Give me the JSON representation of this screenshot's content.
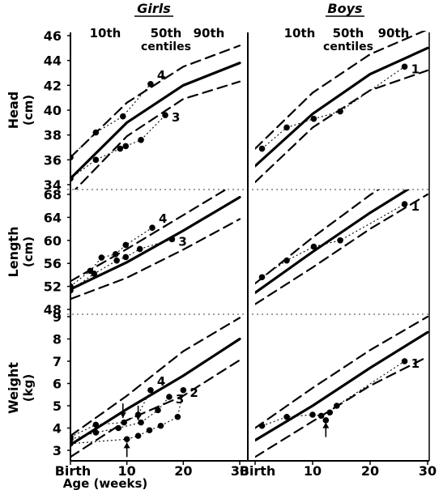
{
  "chart_data": {
    "type": "line",
    "x_unit": "weeks",
    "x_ticks": [
      {
        "value": 0,
        "label": "Birth"
      },
      {
        "value": 10,
        "label": "10"
      },
      {
        "value": 20,
        "label": "20"
      },
      {
        "value": 30,
        "label": "30"
      }
    ],
    "x_axis_label": "Age (weeks)",
    "xlim": [
      0,
      30
    ],
    "centile_header": {
      "tenth": "10th",
      "fiftieth": "50th",
      "ninetieth": "90th",
      "word": "centiles"
    },
    "panels_by_sex": [
      {
        "sex": "Girls",
        "underline": true
      },
      {
        "sex": "Boys",
        "underline": true
      }
    ],
    "measures": [
      {
        "key": "head",
        "label_main": "Head",
        "label_unit": "(cm)",
        "ylim": [
          34,
          46
        ],
        "y_ticks": [
          34,
          36,
          38,
          40,
          42,
          44,
          46
        ],
        "centiles": {
          "Girls": {
            "p10": [
              [
                0,
                33.2
              ],
              [
                10,
                37.9
              ],
              [
                20,
                40.9
              ],
              [
                30,
                42.3
              ]
            ],
            "p50": [
              [
                0,
                34.5
              ],
              [
                10,
                39.0
              ],
              [
                20,
                42.0
              ],
              [
                30,
                43.8
              ]
            ],
            "p90": [
              [
                0,
                36.2
              ],
              [
                10,
                40.6
              ],
              [
                20,
                43.5
              ],
              [
                30,
                45.2
              ]
            ]
          },
          "Boys": {
            "p10": [
              [
                0,
                34.2
              ],
              [
                10,
                38.6
              ],
              [
                20,
                41.6
              ],
              [
                30,
                43.2
              ]
            ],
            "p50": [
              [
                0,
                35.5
              ],
              [
                10,
                39.7
              ],
              [
                20,
                42.9
              ],
              [
                30,
                45.0
              ]
            ],
            "p90": [
              [
                0,
                36.9
              ],
              [
                10,
                41.4
              ],
              [
                20,
                44.5
              ],
              [
                30,
                46.5
              ]
            ]
          }
        },
        "subjects": {
          "Girls": [
            {
              "label": "4",
              "points": [
                [
                  0,
                  36.2
                ],
                [
                  4.5,
                  38.2
                ],
                [
                  9.3,
                  39.5
                ],
                [
                  14.2,
                  42.1
                ]
              ]
            },
            {
              "label": "3",
              "points": [
                [
                  0,
                  34.5
                ],
                [
                  4.5,
                  36.0
                ],
                [
                  8.8,
                  36.9
                ],
                [
                  9.8,
                  37.1
                ],
                [
                  12.5,
                  37.6
                ],
                [
                  16.8,
                  39.6
                ]
              ]
            }
          ],
          "Boys": [
            {
              "label": "1",
              "points": [
                [
                  1.2,
                  36.9
                ],
                [
                  5.5,
                  38.6
                ],
                [
                  10.2,
                  39.3
                ],
                [
                  14.8,
                  39.9
                ],
                [
                  26,
                  43.5
                ]
              ]
            }
          ]
        }
      },
      {
        "key": "length",
        "label_main": "Length",
        "label_unit": "(cm)",
        "ylim": [
          48,
          68
        ],
        "y_ticks": [
          48,
          52,
          56,
          60,
          64,
          68
        ],
        "centiles": {
          "Girls": {
            "p10": [
              [
                0,
                49.8
              ],
              [
                10,
                53.5
              ],
              [
                20,
                58.4
              ],
              [
                30,
                63.7
              ]
            ],
            "p50": [
              [
                0,
                51.5
              ],
              [
                10,
                56.2
              ],
              [
                20,
                61.7
              ],
              [
                30,
                67.5
              ]
            ],
            "p90": [
              [
                0,
                52.9
              ],
              [
                10,
                58.5
              ],
              [
                20,
                64.4
              ],
              [
                30,
                70.3
              ]
            ]
          },
          "Boys": {
            "p10": [
              [
                0,
                48.9
              ],
              [
                10,
                55.3
              ],
              [
                20,
                62.0
              ],
              [
                30,
                68.0
              ]
            ],
            "p50": [
              [
                0,
                50.9
              ],
              [
                10,
                58.0
              ],
              [
                20,
                64.8
              ],
              [
                30,
                71.0
              ]
            ],
            "p90": [
              [
                0,
                52.5
              ],
              [
                10,
                60.5
              ],
              [
                20,
                67.9
              ],
              [
                30,
                74.4
              ]
            ]
          }
        },
        "subjects": {
          "Girls": [
            {
              "label": "4",
              "points": [
                [
                  0,
                  52.0
                ],
                [
                  3.5,
                  54.7
                ],
                [
                  5.5,
                  57.0
                ],
                [
                  8.0,
                  57.6
                ],
                [
                  9.8,
                  59.2
                ],
                [
                  14.5,
                  62.2
                ]
              ]
            },
            {
              "label": "3",
              "points": [
                [
                  0,
                  51.3
                ],
                [
                  4.2,
                  54.2
                ],
                [
                  8.2,
                  56.5
                ],
                [
                  9.8,
                  57.1
                ],
                [
                  12.3,
                  58.5
                ],
                [
                  18.0,
                  60.2
                ]
              ]
            }
          ],
          "Boys": [
            {
              "label": "1",
              "points": [
                [
                  1.2,
                  53.6
                ],
                [
                  5.5,
                  56.5
                ],
                [
                  10.2,
                  58.9
                ],
                [
                  14.8,
                  60.0
                ],
                [
                  26,
                  66.3
                ]
              ]
            }
          ]
        }
      },
      {
        "key": "weight",
        "label_main": "Weight",
        "label_unit": "(kg)",
        "ylim": [
          2.6,
          9.0
        ],
        "y_ticks": [
          3,
          4,
          5,
          6,
          7,
          8,
          9
        ],
        "centiles": {
          "Girls": {
            "p10": [
              [
                0,
                2.7
              ],
              [
                10,
                4.35
              ],
              [
                20,
                5.45
              ],
              [
                30,
                7.05
              ]
            ],
            "p50": [
              [
                0,
                3.25
              ],
              [
                10,
                4.85
              ],
              [
                20,
                6.35
              ],
              [
                30,
                8.0
              ]
            ],
            "p90": [
              [
                0,
                3.65
              ],
              [
                10,
                5.45
              ],
              [
                20,
                7.45
              ],
              [
                30,
                8.95
              ]
            ]
          },
          "Boys": {
            "p10": [
              [
                0,
                2.7
              ],
              [
                10,
                4.3
              ],
              [
                20,
                5.9
              ],
              [
                30,
                7.2
              ]
            ],
            "p50": [
              [
                0,
                3.45
              ],
              [
                10,
                5.0
              ],
              [
                20,
                6.7
              ],
              [
                30,
                8.3
              ]
            ],
            "p90": [
              [
                0,
                4.0
              ],
              [
                10,
                5.8
              ],
              [
                20,
                7.5
              ],
              [
                30,
                9.0
              ]
            ]
          }
        },
        "subjects": {
          "Girls": [
            {
              "label": "4",
              "points": [
                [
                  0,
                  3.6
                ],
                [
                  4.5,
                  4.15
                ],
                [
                  9.5,
                  4.25
                ],
                [
                  12,
                  4.6
                ],
                [
                  14.2,
                  5.7
                ]
              ]
            },
            {
              "label": "3",
              "points": [
                [
                  0,
                  3.5
                ],
                [
                  4.5,
                  3.8
                ],
                [
                  8.5,
                  4.0
                ],
                [
                  12.5,
                  4.25
                ],
                [
                  15.5,
                  4.8
                ],
                [
                  17.5,
                  5.4
                ]
              ]
            },
            {
              "label": "2",
              "points": [
                [
                  0,
                  3.3
                ],
                [
                  10,
                  3.5
                ],
                [
                  12,
                  3.65
                ],
                [
                  14,
                  3.9
                ],
                [
                  16,
                  4.1
                ],
                [
                  19,
                  4.5
                ],
                [
                  20,
                  5.7
                ]
              ]
            }
          ],
          "Boys": [
            {
              "label": "1",
              "points": [
                [
                  1.2,
                  4.1
                ],
                [
                  5.5,
                  4.5
                ],
                [
                  10,
                  4.6
                ],
                [
                  11.5,
                  4.55
                ],
                [
                  12.3,
                  4.35
                ],
                [
                  13,
                  4.7
                ],
                [
                  14.2,
                  5.0
                ],
                [
                  26,
                  7.0
                ]
              ]
            }
          ]
        },
        "arrows": {
          "Girls": [
            {
              "x": 10,
              "y": 3.35,
              "dir": "up"
            },
            {
              "x": 9.3,
              "y": 4.45,
              "dir": "down"
            },
            {
              "x": 12,
              "y": 4.35,
              "dir": "down"
            }
          ],
          "Boys": [
            {
              "x": 12.3,
              "y": 4.25,
              "dir": "up"
            }
          ]
        }
      }
    ]
  }
}
